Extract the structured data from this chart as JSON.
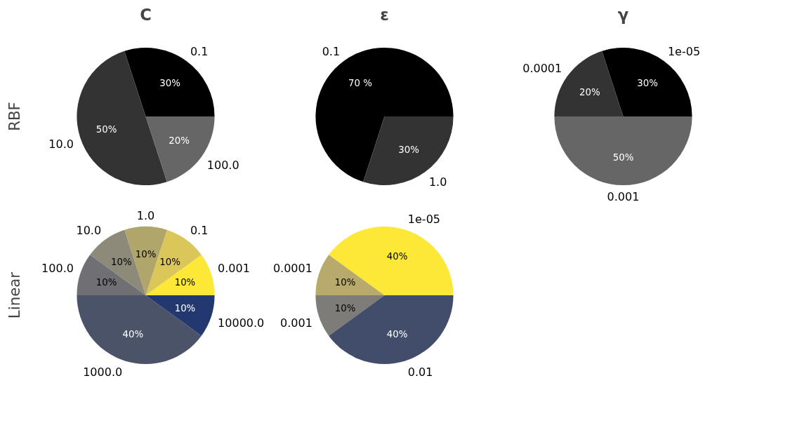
{
  "chart_data": [
    {
      "type": "pie",
      "title": "C",
      "ylabel": "RBF",
      "categories": [
        "0.1",
        "10.0",
        "100.0"
      ],
      "values": [
        30,
        50,
        20
      ],
      "colors": [
        "#000000",
        "#333333",
        "#666666"
      ],
      "value_labels": [
        "30%",
        "50%",
        "20%"
      ]
    },
    {
      "type": "pie",
      "title": "ε",
      "categories": [
        "0.1",
        "1.0"
      ],
      "values": [
        70,
        30
      ],
      "colors": [
        "#000000",
        "#333333"
      ],
      "value_labels": [
        "70 %",
        "30%"
      ]
    },
    {
      "type": "pie",
      "title": "γ",
      "categories": [
        "1e-05",
        "0.0001",
        "0.001"
      ],
      "values": [
        30,
        20,
        50
      ],
      "colors": [
        "#000000",
        "#333333",
        "#666666"
      ],
      "value_labels": [
        "30%",
        "20%",
        "50%"
      ]
    },
    {
      "type": "pie",
      "ylabel": "Linear",
      "categories": [
        "0.001",
        "0.1",
        "1.0",
        "10.0",
        "100.0",
        "1000.0",
        "10000.0"
      ],
      "values": [
        10,
        10,
        10,
        10,
        10,
        40,
        10
      ],
      "colors": [
        "#fde737",
        "#dbc65a",
        "#b0a66b",
        "#8e8a79",
        "#6f6f74",
        "#4b5369",
        "#22386e"
      ],
      "value_labels": [
        "10%",
        "10%",
        "10%",
        "10%",
        "10%",
        "40%",
        "10%"
      ]
    },
    {
      "type": "pie",
      "categories": [
        "1e-05",
        "0.0001",
        "0.001",
        "0.01"
      ],
      "values": [
        40,
        10,
        10,
        40
      ],
      "colors": [
        "#fde737",
        "#b8aa6c",
        "#7d7c78",
        "#414d6b"
      ],
      "value_labels": [
        "40%",
        "10%",
        "10%",
        "40%"
      ]
    }
  ]
}
